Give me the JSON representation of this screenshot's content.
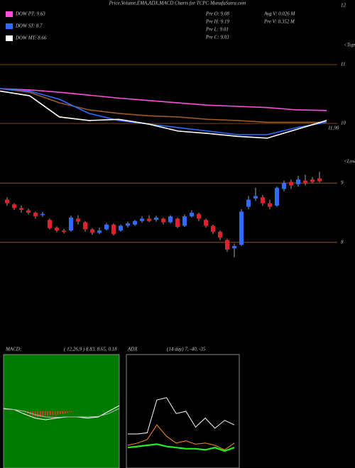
{
  "title": "Price,Volume,EMA,ADX,MACD Charts for TCPC MunafaSutra.com",
  "stats": {
    "left": [
      "Pre O: 9.08",
      "Pre H: 9.19",
      "Pre L: 9.01",
      "Pre C: 9.03"
    ],
    "right": [
      "Avg V: 0.026 M",
      "Pre V: 0.352 M"
    ]
  },
  "markers": {
    "tops": "<Tops",
    "lows": "<Lows"
  },
  "chart_data": [
    {
      "type": "line",
      "ylim": [
        9.7,
        12
      ],
      "yticks": [
        12,
        11,
        10
      ],
      "annotation": "11.90",
      "grid_color": "#c8701e",
      "series": [
        {
          "name": "DOW PT: 9.63",
          "color": "#ff4fd8",
          "values": [
            10.59,
            10.57,
            10.53,
            10.48,
            10.43,
            10.39,
            10.35,
            10.31,
            10.29,
            10.27,
            10.23,
            10.22
          ]
        },
        {
          "name": null,
          "color": "#9a5a2a",
          "values": [
            10.59,
            10.53,
            10.35,
            10.23,
            10.17,
            10.13,
            10.11,
            10.07,
            10.05,
            10.02,
            10.02,
            10.02
          ]
        },
        {
          "name": "DOW ST: 8.7",
          "color": "#2f6bff",
          "values": [
            10.59,
            10.55,
            10.41,
            10.17,
            10.05,
            9.99,
            9.93,
            9.87,
            9.81,
            9.81,
            9.93,
            10.02
          ]
        },
        {
          "name": "DOW MT: 8.66",
          "color": "#ffffff",
          "values": [
            10.55,
            10.47,
            10.11,
            10.05,
            10.07,
            9.99,
            9.87,
            9.83,
            9.78,
            9.75,
            9.9,
            10.05
          ]
        }
      ]
    },
    {
      "type": "candlestick",
      "ylim": [
        7.7,
        9.3
      ],
      "yticks": [
        9,
        8
      ],
      "up_color": "#2f6bff",
      "down_color": "#e0202a",
      "open": [
        8.72,
        8.64,
        8.58,
        8.54,
        8.5,
        8.46,
        8.38,
        8.25,
        8.2,
        8.2,
        8.4,
        8.34,
        8.22,
        8.16,
        8.22,
        8.3,
        8.2,
        8.28,
        8.3,
        8.36,
        8.4,
        8.38,
        8.4,
        8.34,
        8.4,
        8.28,
        8.44,
        8.48,
        8.38,
        8.28,
        8.18,
        8.04,
        7.9,
        7.96,
        8.6,
        8.74,
        8.76,
        8.66,
        8.62,
        8.9,
        9.02,
        8.98,
        9.04,
        9.06,
        9.08
      ],
      "high": [
        8.76,
        8.66,
        8.62,
        8.57,
        8.52,
        8.52,
        8.4,
        8.27,
        8.23,
        8.45,
        8.46,
        8.36,
        8.24,
        8.25,
        8.33,
        8.32,
        8.3,
        8.35,
        8.38,
        8.44,
        8.46,
        8.45,
        8.42,
        8.46,
        8.42,
        8.47,
        8.54,
        8.5,
        8.4,
        8.3,
        8.2,
        8.06,
        7.98,
        8.56,
        8.78,
        8.92,
        8.8,
        8.72,
        8.94,
        9.04,
        9.06,
        9.12,
        9.14,
        9.1,
        9.19
      ],
      "low": [
        8.62,
        8.55,
        8.5,
        8.47,
        8.4,
        8.43,
        8.22,
        8.17,
        8.15,
        8.18,
        8.3,
        8.18,
        8.13,
        8.14,
        8.2,
        8.12,
        8.18,
        8.25,
        8.28,
        8.33,
        8.34,
        8.35,
        8.3,
        8.32,
        8.24,
        8.26,
        8.42,
        8.36,
        8.25,
        8.14,
        8.04,
        7.84,
        7.75,
        7.94,
        8.56,
        8.7,
        8.62,
        8.56,
        8.6,
        8.86,
        8.9,
        8.94,
        8.96,
        9,
        9.01
      ],
      "close": [
        8.66,
        8.58,
        8.55,
        8.5,
        8.44,
        8.48,
        8.24,
        8.2,
        8.18,
        8.42,
        8.35,
        8.22,
        8.16,
        8.2,
        8.3,
        8.14,
        8.28,
        8.32,
        8.36,
        8.4,
        8.36,
        8.42,
        8.34,
        8.44,
        8.26,
        8.44,
        8.5,
        8.4,
        8.28,
        8.18,
        8.08,
        7.88,
        7.94,
        8.52,
        8.72,
        8.78,
        8.66,
        8.6,
        8.92,
        9,
        8.96,
        9.06,
        9,
        9.02,
        9.03
      ]
    },
    {
      "type": "macd",
      "title": "MACD:",
      "subtitle": "( 12,26,9 ) 8.83, 8.65, 0.18",
      "ylim": [
        -1,
        1
      ],
      "bg": "#007a00",
      "series": [
        {
          "color": "#ffffff",
          "values": [
            0.05,
            0.03,
            -0.05,
            -0.12,
            -0.15,
            -0.12,
            -0.1,
            -0.1,
            -0.12,
            -0.1,
            0,
            0.1
          ]
        },
        {
          "color": "#bbbbbb",
          "values": [
            0.04,
            0.03,
            0,
            -0.06,
            -0.1,
            -0.11,
            -0.1,
            -0.1,
            -0.1,
            -0.09,
            -0.04,
            0.05
          ]
        }
      ],
      "histogram": {
        "color": "#ff3030",
        "values": [
          -0.02,
          -0.04,
          -0.06,
          -0.08,
          -0.09,
          -0.1,
          -0.1,
          -0.09,
          -0.08,
          -0.08,
          -0.07,
          -0.07,
          -0.06,
          -0.06,
          -0.05,
          -0.05,
          -0.04,
          -0.03,
          -0.02,
          -0.01
        ]
      }
    },
    {
      "type": "adx",
      "title": "ADX",
      "subtitle": "(14  day) 7, -40, -35",
      "ylim": [
        0,
        100
      ],
      "series": [
        {
          "color": "#ffffff",
          "values": [
            30,
            30,
            31,
            60,
            62,
            48,
            50,
            36,
            44,
            35,
            42,
            38
          ]
        },
        {
          "color": "#ff8c1a",
          "values": [
            20,
            22,
            25,
            38,
            28,
            22,
            24,
            21,
            22,
            20,
            16,
            22
          ]
        },
        {
          "color": "#22ee22",
          "values": [
            18,
            19,
            20,
            21,
            19,
            18,
            17,
            17,
            16,
            18,
            15,
            18
          ]
        }
      ]
    }
  ]
}
